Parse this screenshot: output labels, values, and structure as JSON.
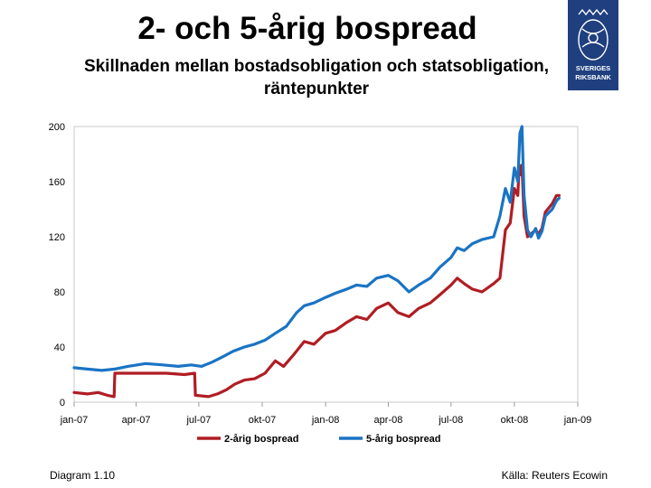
{
  "title": "2- och 5-årig bospread",
  "subtitle_line1": "Skillnaden mellan bostadsobligation och statsobligation,",
  "subtitle_line2": "räntepunkter",
  "logo": {
    "text_line1": "SVERIGES",
    "text_line2": "RIKSBANK",
    "color": "#1f3f7f"
  },
  "footer": {
    "left": "Diagram 1.10",
    "right": "Källa: Reuters Ecowin"
  },
  "chart_data": {
    "type": "line",
    "ylim": [
      0,
      200
    ],
    "y_ticks": [
      "0",
      "40",
      "80",
      "120",
      "160",
      "200"
    ],
    "x_tick_labels": [
      "jan-07",
      "apr-07",
      "jul-07",
      "okt-07",
      "jan-08",
      "apr-08",
      "jul-08",
      "okt-08",
      "jan-09"
    ],
    "x_tick_dates": [
      "2007-01-01",
      "2007-04-01",
      "2007-07-01",
      "2007-10-01",
      "2008-01-01",
      "2008-04-01",
      "2008-07-01",
      "2008-10-01",
      "2009-01-01"
    ],
    "grid": false,
    "legend_position": "bottom",
    "series": [
      {
        "name": "2-årig bospread",
        "color": "#b01d23",
        "points": [
          [
            "2007-01-01",
            7
          ],
          [
            "2007-01-20",
            6
          ],
          [
            "2007-02-05",
            7
          ],
          [
            "2007-02-18",
            5
          ],
          [
            "2007-02-28",
            4
          ],
          [
            "2007-03-01",
            21
          ],
          [
            "2007-03-20",
            21
          ],
          [
            "2007-04-15",
            21
          ],
          [
            "2007-05-15",
            21
          ],
          [
            "2007-06-10",
            20
          ],
          [
            "2007-06-25",
            21
          ],
          [
            "2007-06-26",
            5
          ],
          [
            "2007-07-15",
            4
          ],
          [
            "2007-07-28",
            6
          ],
          [
            "2007-08-10",
            9
          ],
          [
            "2007-08-22",
            13
          ],
          [
            "2007-09-05",
            16
          ],
          [
            "2007-09-20",
            17
          ],
          [
            "2007-10-05",
            21
          ],
          [
            "2007-10-20",
            30
          ],
          [
            "2007-11-01",
            26
          ],
          [
            "2007-11-15",
            34
          ],
          [
            "2007-12-01",
            44
          ],
          [
            "2007-12-15",
            42
          ],
          [
            "2008-01-01",
            50
          ],
          [
            "2008-01-15",
            52
          ],
          [
            "2008-02-01",
            58
          ],
          [
            "2008-02-15",
            62
          ],
          [
            "2008-03-01",
            60
          ],
          [
            "2008-03-15",
            68
          ],
          [
            "2008-04-01",
            72
          ],
          [
            "2008-04-15",
            65
          ],
          [
            "2008-05-01",
            62
          ],
          [
            "2008-05-15",
            68
          ],
          [
            "2008-06-01",
            72
          ],
          [
            "2008-06-15",
            78
          ],
          [
            "2008-07-01",
            85
          ],
          [
            "2008-07-10",
            90
          ],
          [
            "2008-07-20",
            86
          ],
          [
            "2008-08-01",
            82
          ],
          [
            "2008-08-15",
            80
          ],
          [
            "2008-09-01",
            86
          ],
          [
            "2008-09-10",
            90
          ],
          [
            "2008-09-18",
            125
          ],
          [
            "2008-09-25",
            130
          ],
          [
            "2008-10-01",
            155
          ],
          [
            "2008-10-06",
            150
          ],
          [
            "2008-10-08",
            172
          ],
          [
            "2008-10-10",
            165
          ],
          [
            "2008-10-12",
            172
          ],
          [
            "2008-10-15",
            135
          ],
          [
            "2008-10-20",
            120
          ],
          [
            "2008-10-25",
            122
          ],
          [
            "2008-11-01",
            125
          ],
          [
            "2008-11-05",
            122
          ],
          [
            "2008-11-10",
            126
          ],
          [
            "2008-11-15",
            138
          ],
          [
            "2008-11-25",
            144
          ],
          [
            "2008-12-01",
            150
          ],
          [
            "2008-12-05",
            150
          ]
        ]
      },
      {
        "name": "5-årig bospread",
        "color": "#1a74c4",
        "points": [
          [
            "2007-01-01",
            25
          ],
          [
            "2007-01-20",
            24
          ],
          [
            "2007-02-10",
            23
          ],
          [
            "2007-03-01",
            24
          ],
          [
            "2007-03-20",
            26
          ],
          [
            "2007-04-15",
            28
          ],
          [
            "2007-05-10",
            27
          ],
          [
            "2007-06-01",
            26
          ],
          [
            "2007-06-20",
            27
          ],
          [
            "2007-07-05",
            26
          ],
          [
            "2007-07-20",
            29
          ],
          [
            "2007-08-05",
            33
          ],
          [
            "2007-08-20",
            37
          ],
          [
            "2007-09-05",
            40
          ],
          [
            "2007-09-20",
            42
          ],
          [
            "2007-10-05",
            45
          ],
          [
            "2007-10-20",
            50
          ],
          [
            "2007-11-05",
            55
          ],
          [
            "2007-11-20",
            65
          ],
          [
            "2007-12-01",
            70
          ],
          [
            "2007-12-15",
            72
          ],
          [
            "2008-01-01",
            76
          ],
          [
            "2008-01-15",
            79
          ],
          [
            "2008-02-01",
            82
          ],
          [
            "2008-02-15",
            85
          ],
          [
            "2008-03-01",
            84
          ],
          [
            "2008-03-15",
            90
          ],
          [
            "2008-04-01",
            92
          ],
          [
            "2008-04-15",
            88
          ],
          [
            "2008-05-01",
            80
          ],
          [
            "2008-05-15",
            85
          ],
          [
            "2008-06-01",
            90
          ],
          [
            "2008-06-15",
            98
          ],
          [
            "2008-07-01",
            105
          ],
          [
            "2008-07-10",
            112
          ],
          [
            "2008-07-20",
            110
          ],
          [
            "2008-08-01",
            115
          ],
          [
            "2008-08-15",
            118
          ],
          [
            "2008-09-01",
            120
          ],
          [
            "2008-09-10",
            135
          ],
          [
            "2008-09-18",
            155
          ],
          [
            "2008-09-25",
            145
          ],
          [
            "2008-10-01",
            170
          ],
          [
            "2008-10-06",
            160
          ],
          [
            "2008-10-09",
            195
          ],
          [
            "2008-10-12",
            200
          ],
          [
            "2008-10-15",
            150
          ],
          [
            "2008-10-20",
            125
          ],
          [
            "2008-10-25",
            120
          ],
          [
            "2008-11-01",
            126
          ],
          [
            "2008-11-05",
            119
          ],
          [
            "2008-11-10",
            124
          ],
          [
            "2008-11-15",
            135
          ],
          [
            "2008-11-25",
            140
          ],
          [
            "2008-12-01",
            146
          ],
          [
            "2008-12-05",
            148
          ]
        ]
      }
    ]
  }
}
